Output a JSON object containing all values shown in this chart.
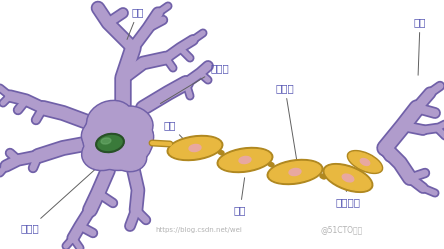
{
  "background_color": "#ffffff",
  "labels": {
    "dendrite": "树突",
    "cell_body": "细胞体",
    "nucleus_label": "细胞核",
    "axon": "轴突",
    "myelin": "髓鞘",
    "node_ranvier": "细胞结",
    "schwann": "施旺细胞",
    "synapse": "突触"
  },
  "colors": {
    "cell_purple": "#b09ccc",
    "cell_outline": "#7060a8",
    "axon_yellow": "#e8b840",
    "axon_outline": "#b08820",
    "nucleus_green": "#3a7a3a",
    "nucleus_outline": "#285028",
    "label_color": "#5050b0",
    "line_color": "#606060",
    "pink_dot": "#e8a8a0"
  },
  "watermark": "https://blog.csdn.net/wei",
  "watermark2": "@51CTO博客"
}
